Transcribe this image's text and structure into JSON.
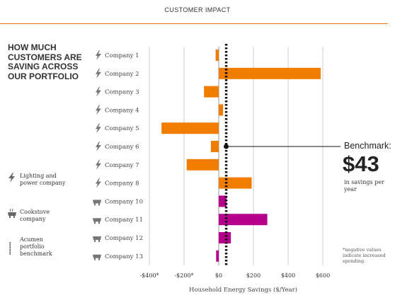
{
  "header": {
    "title": "CUSTOMER IMPACT"
  },
  "question": "HOW MUCH CUSTOMERS ARE SAVING ACROSS OUR PORTFOLIO",
  "legend": [
    {
      "icon": "lightning-icon",
      "label": "Lighting and power company"
    },
    {
      "icon": "cookstove-icon",
      "label": "Cookstove company"
    },
    {
      "icon": "benchmark-line-icon",
      "label": "Acumen portfolio benchmark"
    }
  ],
  "benchmark": {
    "title": "Benchmark:",
    "value": "$43",
    "subtitle": "in savings per year"
  },
  "footnote": "*negative values indicate increased spending.",
  "colors": {
    "accent": "#e8750f",
    "lighting": "#f07d00",
    "cookstove": "#b5008c",
    "text": "#333333"
  },
  "chart_data": {
    "type": "bar",
    "orientation": "horizontal",
    "categories": [
      "Company 1",
      "Company 2",
      "Company 3",
      "Company 4",
      "Company 5",
      "Company 6",
      "Company 7",
      "Company 8",
      "Company 10",
      "Company 11",
      "Company 12",
      "Company 13"
    ],
    "company_type": [
      "lighting",
      "lighting",
      "lighting",
      "lighting",
      "lighting",
      "lighting",
      "lighting",
      "lighting",
      "cookstove",
      "cookstove",
      "cookstove",
      "cookstove"
    ],
    "values": [
      -18,
      588,
      -85,
      25,
      -330,
      -45,
      -185,
      190,
      45,
      280,
      70,
      -15
    ],
    "benchmark": 43,
    "xlim": [
      -400,
      600
    ],
    "xticks": [
      -400,
      -200,
      0,
      200,
      400,
      600
    ],
    "xtick_labels": [
      "-$400*",
      "-$200*",
      "$0",
      "$200",
      "$400",
      "$600"
    ],
    "xlabel": "Household Energy Savings ($/Year)",
    "grid": true
  }
}
